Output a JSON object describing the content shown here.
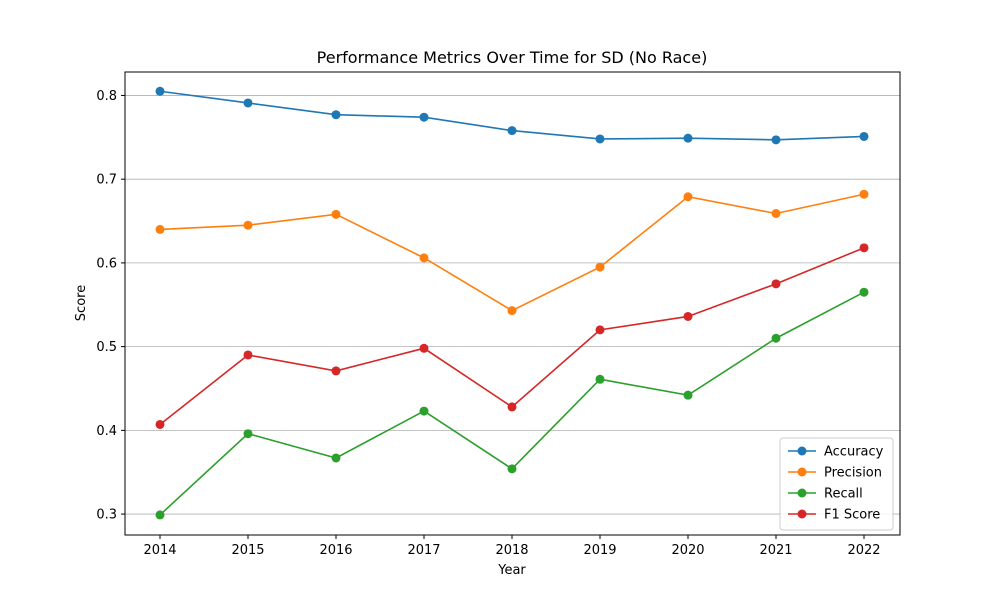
{
  "chart_data": {
    "type": "line",
    "title": "Performance Metrics Over Time for SD (No Race)",
    "xlabel": "Year",
    "ylabel": "Score",
    "x": [
      2014,
      2015,
      2016,
      2017,
      2018,
      2019,
      2020,
      2021,
      2022
    ],
    "x_tick_labels": [
      "2014",
      "2015",
      "2016",
      "2017",
      "2018",
      "2019",
      "2020",
      "2021",
      "2022"
    ],
    "ylim": [
      0.275,
      0.828
    ],
    "y_ticks": [
      0.3,
      0.4,
      0.5,
      0.6,
      0.7,
      0.8
    ],
    "y_tick_labels": [
      "0.3",
      "0.4",
      "0.5",
      "0.6",
      "0.7",
      "0.8"
    ],
    "grid": "horizontal",
    "legend_position": "lower right",
    "series": [
      {
        "name": "Accuracy",
        "color": "#1f77b4",
        "values": [
          0.805,
          0.791,
          0.777,
          0.774,
          0.758,
          0.748,
          0.749,
          0.747,
          0.751
        ]
      },
      {
        "name": "Precision",
        "color": "#ff7f0e",
        "values": [
          0.64,
          0.645,
          0.658,
          0.606,
          0.543,
          0.595,
          0.679,
          0.659,
          0.682
        ]
      },
      {
        "name": "Recall",
        "color": "#2ca02c",
        "values": [
          0.299,
          0.396,
          0.367,
          0.423,
          0.354,
          0.461,
          0.442,
          0.51,
          0.565
        ]
      },
      {
        "name": "F1 Score",
        "color": "#d62728",
        "values": [
          0.407,
          0.49,
          0.471,
          0.498,
          0.428,
          0.52,
          0.536,
          0.575,
          0.618
        ]
      }
    ]
  }
}
